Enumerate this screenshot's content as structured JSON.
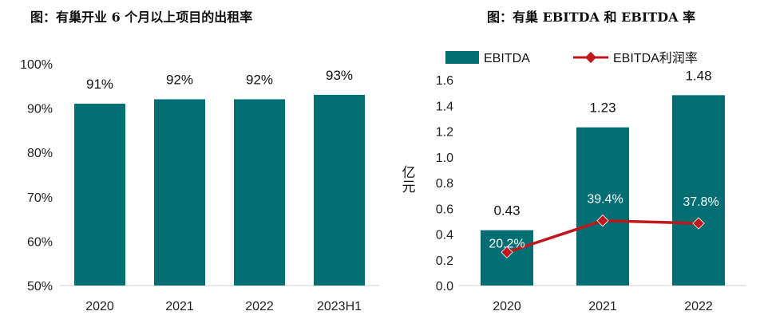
{
  "chart_data": [
    {
      "type": "bar",
      "title": "图：有巢开业 6 个月以上项目的出租率",
      "categories": [
        "2020",
        "2021",
        "2022",
        "2023H1"
      ],
      "values": [
        91,
        92,
        92,
        93
      ],
      "data_labels": [
        "91%",
        "92%",
        "92%",
        "93%"
      ],
      "y_ticks": [
        "50%",
        "60%",
        "70%",
        "80%",
        "90%",
        "100%"
      ],
      "ylim": [
        50,
        100
      ],
      "grid": false,
      "bar_color": "#006e72"
    },
    {
      "type": "bar+line",
      "title": "图：有巢 EBITDA 和 EBITDA 率",
      "categories": [
        "2020",
        "2021",
        "2022"
      ],
      "ylabel": "亿元",
      "legend_position": "top",
      "grid": false,
      "ylim": [
        0,
        1.6
      ],
      "y_ticks": [
        "0.0",
        "0.2",
        "0.4",
        "0.6",
        "0.8",
        "1.0",
        "1.2",
        "1.4",
        "1.6"
      ],
      "series": [
        {
          "name": "EBITDA",
          "kind": "bar",
          "values": [
            0.43,
            1.23,
            1.48
          ],
          "data_labels": [
            "0.43",
            "1.23",
            "1.48"
          ],
          "color": "#006e72"
        },
        {
          "name": "EBITDA利润率",
          "kind": "line",
          "values": [
            20.2,
            39.4,
            37.8
          ],
          "data_labels": [
            "20.2%",
            "39.4%",
            "37.8%"
          ],
          "color": "#c0171d"
        }
      ]
    }
  ]
}
